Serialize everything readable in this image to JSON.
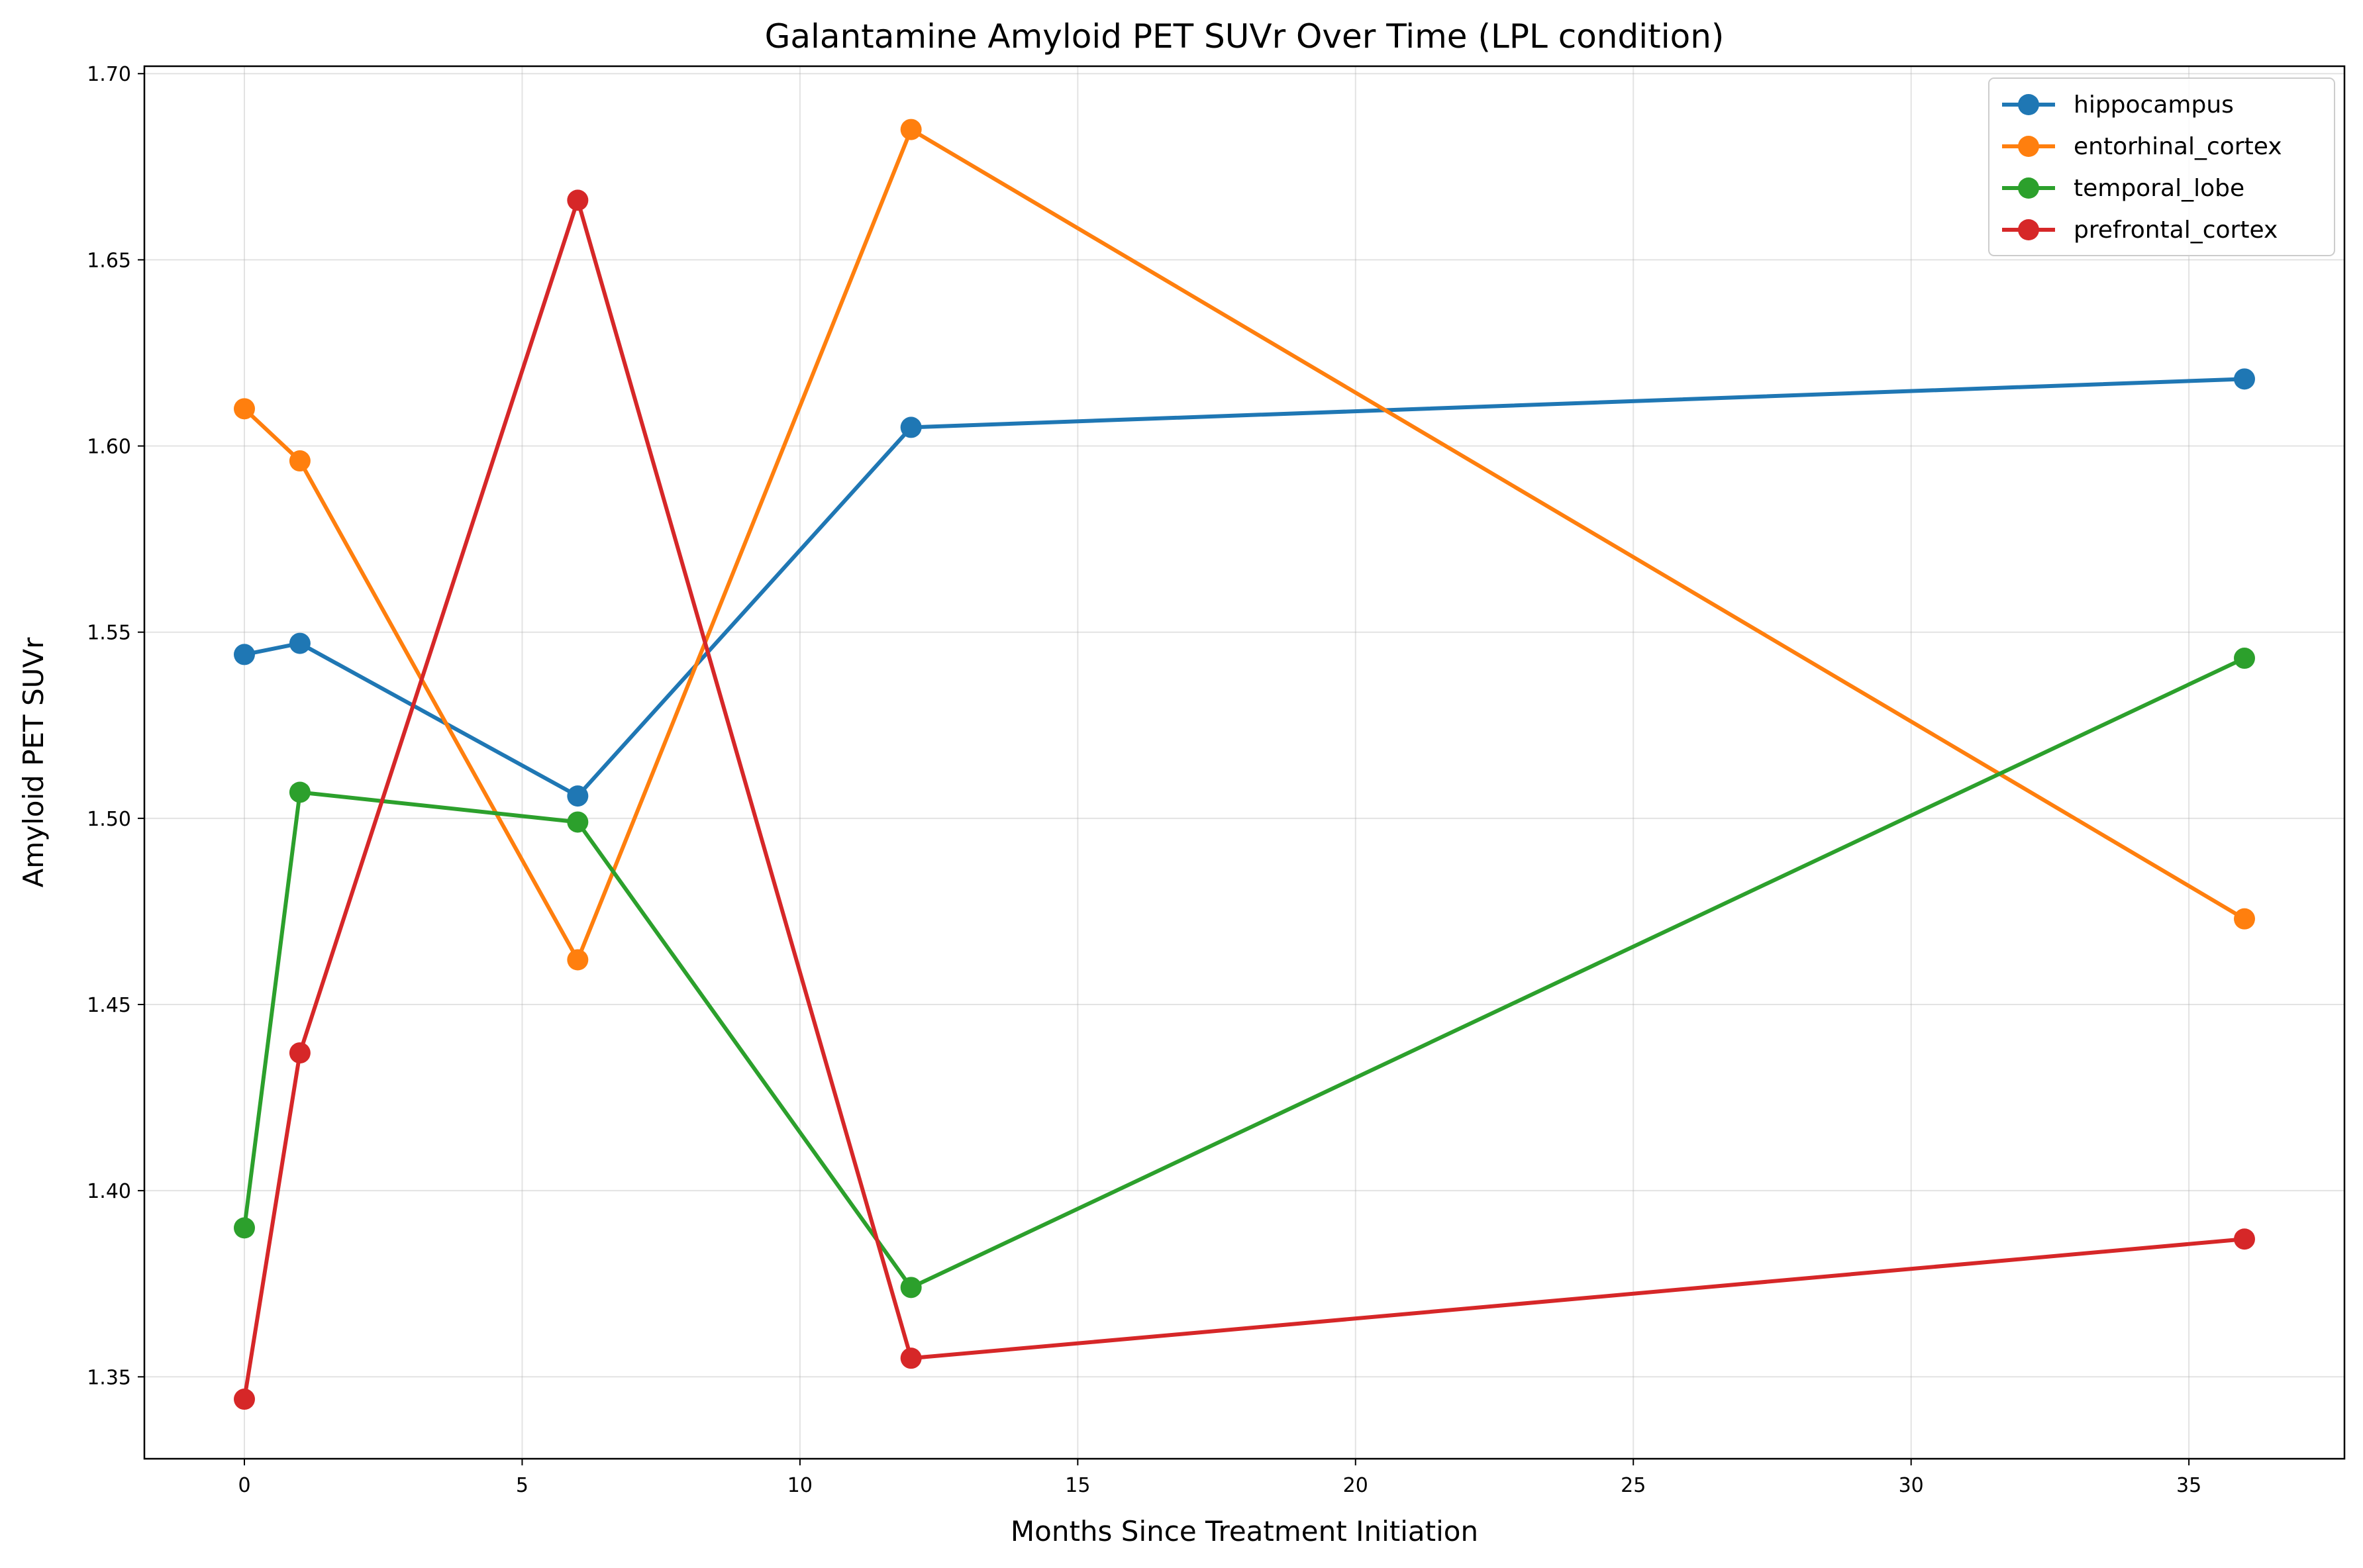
{
  "chart_data": {
    "type": "line",
    "title": "Galantamine Amyloid PET SUVr Over Time (LPL condition)",
    "xlabel": "Months Since Treatment Initiation",
    "ylabel": "Amyloid PET SUVr",
    "xlim": [
      -1.8,
      37.8
    ],
    "ylim": [
      1.328,
      1.702
    ],
    "xticks": [
      0,
      5,
      10,
      15,
      20,
      25,
      30,
      35
    ],
    "xtick_labels": [
      "0",
      "5",
      "10",
      "15",
      "20",
      "25",
      "30",
      "35"
    ],
    "yticks": [
      1.35,
      1.4,
      1.45,
      1.5,
      1.55,
      1.6,
      1.65,
      1.7
    ],
    "ytick_labels": [
      "1.35",
      "1.40",
      "1.45",
      "1.50",
      "1.55",
      "1.60",
      "1.65",
      "1.70"
    ],
    "grid": true,
    "legend_position": "top-right",
    "x": [
      0,
      1,
      6,
      12,
      36
    ],
    "series": [
      {
        "name": "hippocampus",
        "color": "#1f77b4",
        "values": [
          1.544,
          1.547,
          1.506,
          1.605,
          1.618
        ]
      },
      {
        "name": "entorhinal_cortex",
        "color": "#ff7f0e",
        "values": [
          1.61,
          1.596,
          1.462,
          1.685,
          1.473
        ]
      },
      {
        "name": "temporal_lobe",
        "color": "#2ca02c",
        "values": [
          1.39,
          1.507,
          1.499,
          1.374,
          1.543
        ]
      },
      {
        "name": "prefrontal_cortex",
        "color": "#d62728",
        "values": [
          1.344,
          1.437,
          1.666,
          1.355,
          1.387
        ]
      }
    ]
  }
}
